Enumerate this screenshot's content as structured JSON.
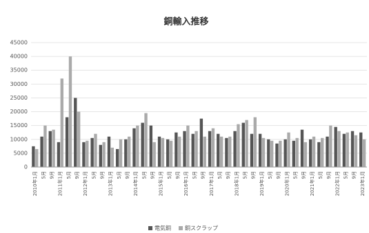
{
  "chart_data": {
    "type": "bar",
    "title": "銅輸入推移",
    "categories": [
      "2010年1月",
      "5月",
      "9月",
      "2011年1月",
      "5月",
      "9月",
      "2012年1月",
      "5月",
      "9月",
      "2013年1月",
      "5月",
      "9月",
      "2014年1月",
      "5月",
      "9月",
      "2015年1月",
      "5月",
      "9月",
      "2016年1月",
      "5月",
      "9月",
      "2017年1月",
      "5月",
      "9月",
      "2018年1月",
      "5月",
      "9月",
      "2019年1月",
      "5月",
      "9月",
      "2020年1月",
      "5月",
      "9月",
      "2021年1月",
      "5月",
      "9月",
      "2022年1月",
      "5月",
      "9月",
      "2023年1月"
    ],
    "series": [
      {
        "name": "電気銅",
        "color": "#555555",
        "values": [
          7500,
          11000,
          13000,
          9000,
          18000,
          25000,
          9000,
          10500,
          8000,
          11000,
          6500,
          10000,
          14000,
          16000,
          15000,
          11000,
          10000,
          12500,
          13000,
          12000,
          17500,
          13000,
          12000,
          10500,
          13000,
          16000,
          12000,
          12000,
          10000,
          8500,
          10000,
          9500,
          13500,
          10000,
          9000,
          11000,
          14500,
          12000,
          13000,
          12500
        ]
      },
      {
        "name": "銅スクラップ",
        "color": "#aaaaaa",
        "values": [
          6500,
          15000,
          13500,
          32000,
          40000,
          20000,
          9500,
          12000,
          9000,
          7000,
          10000,
          11000,
          15000,
          19500,
          9000,
          10500,
          9500,
          11000,
          15000,
          13000,
          11000,
          14000,
          11000,
          11000,
          15500,
          17000,
          18000,
          10500,
          9500,
          9500,
          12500,
          10500,
          9000,
          11000,
          10500,
          15000,
          13000,
          12500,
          11500,
          10000
        ]
      }
    ],
    "ylim": [
      0,
      45000
    ],
    "yticks": [
      0,
      5000,
      10000,
      15000,
      20000,
      25000,
      30000,
      35000,
      40000,
      45000
    ],
    "grid": true,
    "legend": "bottom"
  }
}
